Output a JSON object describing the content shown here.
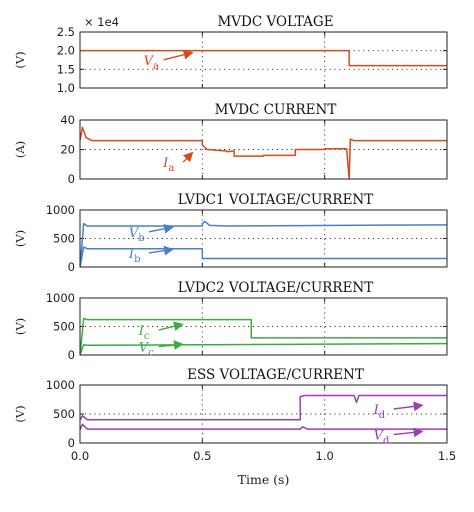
{
  "chart_data": [
    {
      "type": "line",
      "title": "MVDC VOLTAGE",
      "ylabel": "(V)",
      "multiplier": "× 1e4",
      "xlim": [
        0,
        1.5
      ],
      "ylim": [
        1.0,
        2.5
      ],
      "yticks": [
        "1.0",
        "1.5",
        "2.0",
        "2.5"
      ],
      "grid_y": [
        1.5,
        2.0
      ],
      "grid_x": [
        0.5,
        1.0
      ],
      "series": [
        {
          "name": "V",
          "sub": "a",
          "color": "#d7481d",
          "x": [
            0,
            1.1,
            1.1,
            1.5
          ],
          "y": [
            2.0,
            2.0,
            1.6,
            1.6
          ]
        }
      ],
      "annotations": [
        {
          "base": "V",
          "sub": "a",
          "color": "#d7481d",
          "text_x": 0.26,
          "text_y": 1.62,
          "arrow_to": [
            0.46,
            1.95
          ]
        }
      ]
    },
    {
      "type": "line",
      "title": "MVDC CURRENT",
      "ylabel": "(A)",
      "xlim": [
        0,
        1.5
      ],
      "ylim": [
        0,
        40
      ],
      "yticks": [
        "0",
        "20",
        "40"
      ],
      "grid_y": [
        20
      ],
      "grid_x": [
        0.5,
        1.0
      ],
      "series": [
        {
          "name": "I",
          "sub": "a",
          "color": "#d7481d",
          "x": [
            0,
            0.01,
            0.025,
            0.05,
            0.1,
            0.5,
            0.5,
            0.52,
            0.6,
            0.6,
            0.63,
            0.63,
            0.75,
            0.75,
            0.88,
            0.88,
            1.0,
            1.0,
            1.09,
            1.1,
            1.105,
            1.12,
            1.2,
            1.5
          ],
          "y": [
            26,
            35,
            28,
            26,
            26,
            26,
            23,
            20,
            19,
            18.5,
            19,
            15.5,
            15.5,
            16,
            16,
            20,
            20,
            20.5,
            20.5,
            0,
            27,
            26,
            26,
            26
          ]
        }
      ],
      "annotations": [
        {
          "base": "I",
          "sub": "a",
          "color": "#d7481d",
          "text_x": 0.34,
          "text_y": 8,
          "arrow_to": [
            0.46,
            18
          ]
        }
      ]
    },
    {
      "type": "line",
      "title": "LVDC1 VOLTAGE/CURRENT",
      "ylabel": "(V)",
      "xlim": [
        0,
        1.5
      ],
      "ylim": [
        0,
        1000
      ],
      "yticks": [
        "0",
        "500",
        "1000"
      ],
      "grid_y": [
        500
      ],
      "grid_x": [
        0.5,
        1.0
      ],
      "series": [
        {
          "name": "V",
          "sub": "b",
          "color": "#4a7fc9",
          "x": [
            0,
            0.015,
            0.03,
            0.5,
            0.5,
            0.51,
            0.53,
            0.6,
            1.5
          ],
          "y": [
            0,
            760,
            720,
            720,
            760,
            800,
            730,
            720,
            740
          ]
        },
        {
          "name": "I",
          "sub": "b",
          "color": "#4a7fc9",
          "x": [
            0,
            0.015,
            0.03,
            0.5,
            0.5,
            1.5
          ],
          "y": [
            0,
            350,
            320,
            320,
            150,
            150
          ]
        }
      ],
      "annotations": [
        {
          "base": "V",
          "sub": "b",
          "color": "#4a7fc9",
          "text_x": 0.2,
          "text_y": 530,
          "arrow_to": [
            0.38,
            700
          ]
        },
        {
          "base": "I",
          "sub": "b",
          "color": "#4a7fc9",
          "text_x": 0.2,
          "text_y": 160,
          "arrow_to": [
            0.38,
            310
          ]
        }
      ]
    },
    {
      "type": "line",
      "title": "LVDC2 VOLTAGE/CURRENT",
      "ylabel": "(V)",
      "xlim": [
        0,
        1.5
      ],
      "ylim": [
        0,
        1000
      ],
      "yticks": [
        "0",
        "500",
        "1000"
      ],
      "grid_y": [
        500
      ],
      "grid_x": [
        0.5,
        1.0
      ],
      "series": [
        {
          "name": "I",
          "sub": "c",
          "color": "#3caa44",
          "x": [
            0,
            0.015,
            0.03,
            0.7,
            0.7,
            1.5
          ],
          "y": [
            0,
            640,
            620,
            620,
            300,
            300
          ]
        },
        {
          "name": "V",
          "sub": "c",
          "color": "#3caa44",
          "x": [
            0,
            0.015,
            0.03,
            1.5
          ],
          "y": [
            0,
            180,
            170,
            200
          ]
        }
      ],
      "annotations": [
        {
          "base": "I",
          "sub": "c",
          "color": "#3caa44",
          "text_x": 0.24,
          "text_y": 350,
          "arrow_to": [
            0.42,
            540
          ]
        },
        {
          "base": "V",
          "sub": "c",
          "color": "#3caa44",
          "text_x": 0.24,
          "text_y": 60,
          "arrow_to": [
            0.42,
            190
          ]
        }
      ]
    },
    {
      "type": "line",
      "title": "ESS VOLTAGE/CURRENT",
      "ylabel": "(V)",
      "xlim": [
        0,
        1.5
      ],
      "ylim": [
        0,
        1000
      ],
      "yticks": [
        "0",
        "500",
        "1000"
      ],
      "grid_y": [
        500
      ],
      "grid_x": [
        0.5,
        1.0
      ],
      "series": [
        {
          "name": "I",
          "sub": "d",
          "color": "#9a3fb3",
          "x": [
            0,
            0.01,
            0.03,
            0.9,
            0.9,
            0.92,
            1.12,
            1.13,
            1.14,
            1.5
          ],
          "y": [
            400,
            470,
            400,
            400,
            800,
            820,
            820,
            700,
            820,
            820
          ]
        },
        {
          "name": "V",
          "sub": "d",
          "color": "#9a3fb3",
          "x": [
            0,
            0.01,
            0.03,
            0.9,
            0.91,
            0.93,
            1.5
          ],
          "y": [
            230,
            320,
            240,
            240,
            280,
            240,
            240
          ]
        }
      ],
      "annotations": [
        {
          "base": "I",
          "sub": "d",
          "color": "#9a3fb3",
          "text_x": 1.2,
          "text_y": 500,
          "arrow_to": [
            1.4,
            650
          ]
        },
        {
          "base": "V",
          "sub": "d",
          "color": "#9a3fb3",
          "text_x": 1.2,
          "text_y": 60,
          "arrow_to": [
            1.4,
            200
          ]
        }
      ]
    }
  ],
  "x_axis": {
    "label": "Time (s)",
    "ticks": [
      "0.0",
      "0.5",
      "1.0",
      "1.5"
    ]
  }
}
